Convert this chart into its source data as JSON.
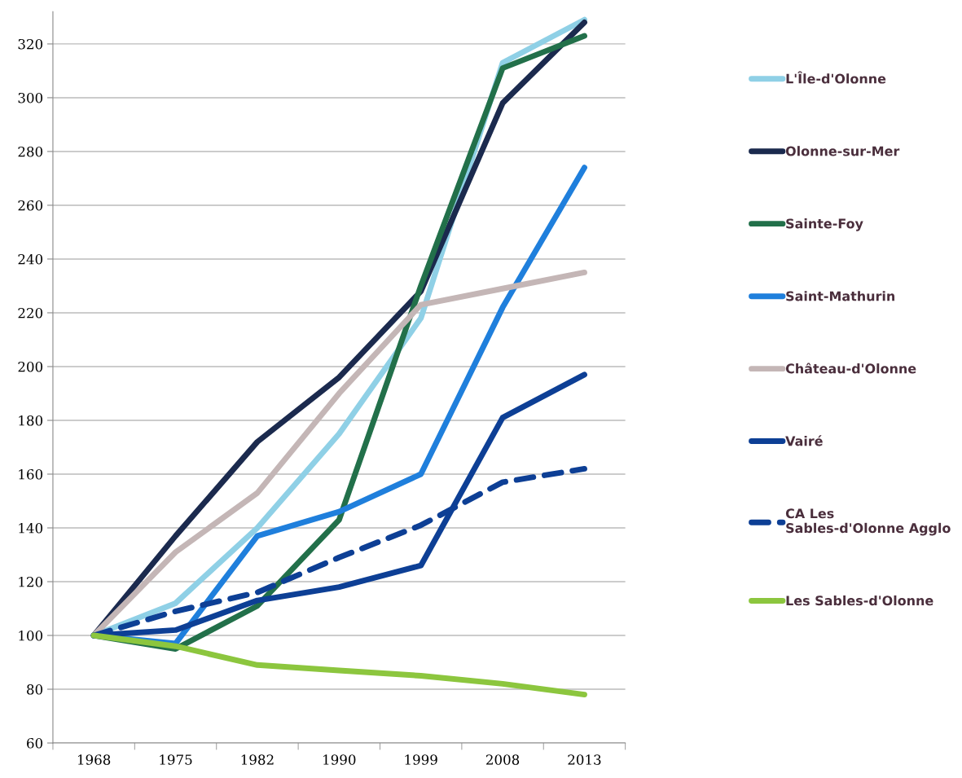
{
  "chart_data": {
    "type": "line",
    "categories": [
      "1968",
      "1975",
      "1982",
      "1990",
      "1999",
      "2008",
      "2013"
    ],
    "series": [
      {
        "name": "L'Île-d'Olonne",
        "color": "#8fd0e6",
        "values": [
          100,
          112,
          140,
          175,
          218,
          313,
          329
        ]
      },
      {
        "name": "Olonne-sur-Mer",
        "color": "#1b2a4e",
        "values": [
          100,
          137,
          172,
          196,
          228,
          298,
          328
        ]
      },
      {
        "name": "Sainte-Foy",
        "color": "#22704a",
        "values": [
          100,
          95,
          111,
          143,
          230,
          311,
          323
        ]
      },
      {
        "name": "Saint-Mathurin",
        "color": "#1f7fdc",
        "values": [
          100,
          97,
          137,
          146,
          160,
          222,
          274
        ]
      },
      {
        "name": "Château-d'Olonne",
        "color": "#c4b6b6",
        "values": [
          100,
          131,
          153,
          190,
          223,
          229,
          235
        ]
      },
      {
        "name": "Vairé",
        "color": "#0d3f95",
        "values": [
          100,
          102,
          113,
          118,
          126,
          181,
          197
        ]
      },
      {
        "name": "CA Les Sables-d'Olonne Agglo",
        "color": "#0d3f95",
        "line_style": "dashed",
        "values": [
          100,
          109,
          116,
          129,
          141,
          157,
          162
        ]
      },
      {
        "name": "Les Sables-d'Olonne",
        "color": "#8cc63e",
        "values": [
          100,
          96,
          89,
          87,
          85,
          82,
          78
        ]
      }
    ],
    "ylim": [
      60,
      332
    ],
    "yticks": [
      60,
      80,
      100,
      120,
      140,
      160,
      180,
      200,
      220,
      240,
      260,
      280,
      300,
      320
    ],
    "grid": "y",
    "legend": "right",
    "line_style": "solid",
    "marker": "none"
  }
}
